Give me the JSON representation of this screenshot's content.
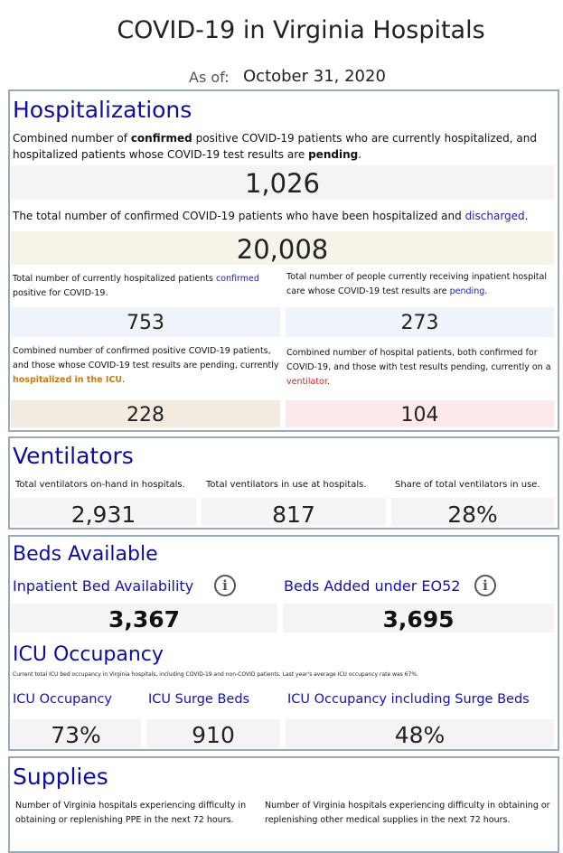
{
  "header": {
    "title": "COVID-19 in Virginia Hospitals",
    "as_of_label": "As of:",
    "as_of_date": "October 31, 2020"
  },
  "hospitalizations": {
    "heading": "Hospitalizations",
    "combined_desc": {
      "p1": "Combined number of ",
      "k1": "confirmed",
      "p2": " positive COVID-19 patients who are currently hospitalized, and hospitalized patients whose COVID-19 test results are ",
      "k2": "pending",
      "p3": "."
    },
    "combined_value": "1,026",
    "discharged_desc": {
      "p1": "The total number of confirmed COVID-19 patients who have been hospitalized and ",
      "k1": "discharged",
      "p2": "."
    },
    "discharged_value": "20,008",
    "confirmed_desc": {
      "p1": "Total number of currently hospitalized patients ",
      "k1": "confirmed",
      "p2": " positive for COVID-19."
    },
    "confirmed_value": "753",
    "pending_desc": {
      "p1": "Total number of people currently receiving inpatient hospital care whose COVID-19 test results are ",
      "k1": "pending",
      "p2": "."
    },
    "pending_value": "273",
    "icu_desc": {
      "p1": "Combined number of confirmed positive COVID-19 patients, and those whose COVID-19 test results are pending, currently ",
      "k1": "hospitalized in the ICU",
      "p2": "."
    },
    "icu_value": "228",
    "vent_desc": {
      "p1": "Combined number of hospital patients, both confirmed for COVID-19, and those with test results pending, currently on a ",
      "k1": "ventilator",
      "p2": "."
    },
    "vent_value": "104"
  },
  "ventilators": {
    "heading": "Ventilators",
    "onhand_label": "Total ventilators on-hand in hospitals.",
    "onhand_value": "2,931",
    "inuse_label": "Total ventilators in use at hospitals.",
    "inuse_value": "817",
    "share_label": "Share of total ventilators in use.",
    "share_value": "28%"
  },
  "beds": {
    "heading": "Beds Available",
    "inpatient_label": "Inpatient Bed Availability",
    "inpatient_value": "3,367",
    "eo52_label": "Beds Added under EO52",
    "eo52_value": "3,695",
    "icu_heading": "ICU Occupancy",
    "icu_note": "Current total ICU bed occupancy in Virginia hospitals, including COVID-19 and non-COVID patients. Last year's average ICU occupancy rate was 67%.",
    "icu_occ_label": "ICU Occupancy",
    "icu_occ_value": "73%",
    "surge_label": "ICU Surge Beds",
    "surge_value": "910",
    "occ_surge_label": "ICU Occupancy including Surge Beds",
    "occ_surge_value": "48%"
  },
  "supplies": {
    "heading": "Supplies",
    "ppe_desc": "Number of Virginia hospitals experiencing difficulty in obtaining or replenishing PPE in the next 72 hours.",
    "other_desc": "Number of Virginia hospitals experiencing difficulty in obtaining or replenishing other medical supplies in the next 72 hours."
  }
}
